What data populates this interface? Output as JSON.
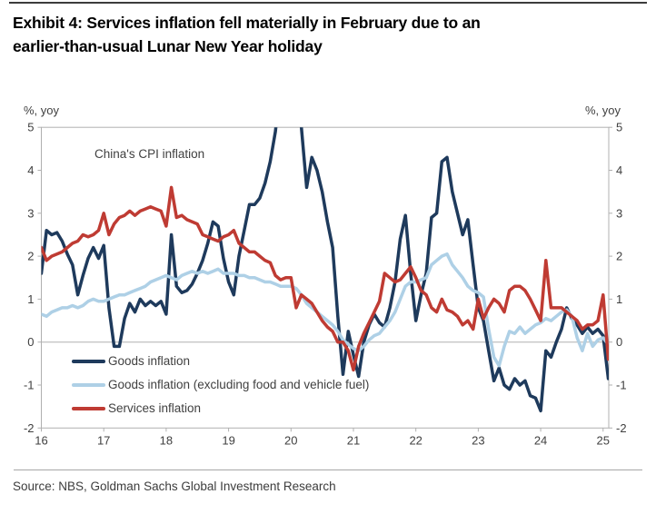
{
  "title": {
    "line1": "Exhibit 4: Services inflation fell materially in February due to an",
    "line2": "earlier-than-usual Lunar New Year holiday"
  },
  "axis": {
    "unit_left": "%, yoy",
    "unit_right": "%, yoy",
    "annotation": "China's CPI inflation"
  },
  "source": "Source: NBS, Goldman Sachs Global Investment Research",
  "colors": {
    "goods": "#1e3a5c",
    "core_goods": "#aed0e6",
    "services": "#bf3b33",
    "axis_line": "#b0b0b0",
    "tick_text": "#404040"
  },
  "legend": [
    {
      "label": "Goods inflation",
      "color": "#1e3a5c",
      "thickness": 4
    },
    {
      "label": "Goods inflation (excluding food and vehicle fuel)",
      "color": "#aed0e6",
      "thickness": 4
    },
    {
      "label": "Services inflation",
      "color": "#bf3b33",
      "thickness": 4
    }
  ],
  "chart_data": {
    "type": "line",
    "title_annotation": "China's CPI inflation",
    "x_start": "2016-01",
    "x_end": "2025-02",
    "frequency": "monthly",
    "ylim": [
      -2,
      5
    ],
    "y_ticks": [
      5,
      4,
      3,
      2,
      1,
      0,
      -1,
      -2
    ],
    "x_tick_labels": [
      "16",
      "17",
      "18",
      "19",
      "20",
      "21",
      "22",
      "23",
      "24",
      "25"
    ],
    "grid": "zero-line-only",
    "legend_position": "bottom-left-inside",
    "note": "Goods line exceeds the +5 axis limit from late 2019 to early 2020 and is clipped at the plot top.",
    "series": [
      {
        "name": "Goods inflation",
        "color": "#1e3a5c",
        "values": [
          1.6,
          2.6,
          2.5,
          2.55,
          2.35,
          2.05,
          1.8,
          1.1,
          1.55,
          1.95,
          2.2,
          1.95,
          2.25,
          0.8,
          -0.1,
          -0.1,
          0.55,
          0.9,
          0.7,
          1.0,
          0.85,
          0.95,
          0.85,
          0.95,
          0.65,
          2.5,
          1.3,
          1.15,
          1.2,
          1.35,
          1.6,
          1.9,
          2.3,
          2.8,
          2.7,
          1.95,
          1.4,
          1.1,
          2.0,
          2.6,
          3.2,
          3.2,
          3.35,
          3.7,
          4.2,
          4.9,
          6.0,
          6.3,
          6.5,
          6.5,
          5.0,
          3.6,
          4.3,
          4.0,
          3.5,
          2.8,
          2.2,
          0.6,
          -0.75,
          0.25,
          -0.3,
          -0.8,
          0.0,
          0.4,
          0.65,
          0.45,
          0.35,
          0.8,
          1.4,
          2.4,
          2.95,
          1.6,
          0.5,
          1.1,
          1.6,
          2.9,
          3.0,
          4.2,
          4.3,
          3.5,
          3.0,
          2.5,
          2.85,
          1.8,
          0.8,
          0.5,
          -0.2,
          -0.9,
          -0.6,
          -1.0,
          -1.1,
          -0.85,
          -1.0,
          -0.9,
          -1.25,
          -1.3,
          -1.6,
          -0.2,
          -0.35,
          0.0,
          0.3,
          0.8,
          0.55,
          0.4,
          0.2,
          0.35,
          0.2,
          0.3,
          0.15,
          -0.85
        ]
      },
      {
        "name": "Goods inflation (excluding food and vehicle fuel)",
        "color": "#aed0e6",
        "values": [
          0.65,
          0.6,
          0.7,
          0.75,
          0.8,
          0.8,
          0.85,
          0.8,
          0.85,
          0.95,
          1.0,
          0.95,
          0.95,
          1.0,
          1.05,
          1.1,
          1.1,
          1.15,
          1.2,
          1.25,
          1.3,
          1.4,
          1.45,
          1.5,
          1.55,
          1.5,
          1.45,
          1.55,
          1.6,
          1.65,
          1.6,
          1.65,
          1.6,
          1.65,
          1.7,
          1.6,
          1.6,
          1.6,
          1.55,
          1.55,
          1.5,
          1.5,
          1.45,
          1.4,
          1.4,
          1.35,
          1.3,
          1.3,
          1.3,
          1.25,
          1.1,
          0.9,
          0.8,
          0.7,
          0.6,
          0.5,
          0.4,
          0.25,
          0.05,
          -0.05,
          -0.15,
          -0.2,
          -0.1,
          0.05,
          0.15,
          0.2,
          0.35,
          0.5,
          0.7,
          1.0,
          1.3,
          1.4,
          1.4,
          1.45,
          1.5,
          1.8,
          1.9,
          2.0,
          2.05,
          1.8,
          1.65,
          1.5,
          1.3,
          1.2,
          1.15,
          1.05,
          0.3,
          -0.35,
          -0.55,
          -0.1,
          0.25,
          0.2,
          0.35,
          0.2,
          0.3,
          0.4,
          0.45,
          0.55,
          0.5,
          0.6,
          0.7,
          0.75,
          0.6,
          0.1,
          -0.2,
          0.2,
          -0.1,
          0.05,
          0.1,
          -0.05
        ]
      },
      {
        "name": "Services inflation",
        "color": "#bf3b33",
        "values": [
          2.2,
          1.9,
          2.0,
          2.05,
          2.1,
          2.2,
          2.3,
          2.35,
          2.5,
          2.45,
          2.5,
          2.6,
          3.0,
          2.5,
          2.75,
          2.9,
          2.95,
          3.05,
          2.95,
          3.05,
          3.1,
          3.15,
          3.1,
          3.05,
          2.7,
          3.6,
          2.9,
          2.95,
          2.85,
          2.8,
          2.75,
          2.5,
          2.45,
          2.4,
          2.35,
          2.45,
          2.5,
          2.6,
          2.3,
          2.2,
          2.1,
          2.1,
          2.0,
          1.9,
          1.85,
          1.55,
          1.45,
          1.5,
          1.5,
          0.8,
          1.1,
          1.0,
          0.9,
          0.7,
          0.5,
          0.35,
          0.25,
          0.0,
          0.0,
          -0.2,
          -0.65,
          -0.1,
          0.2,
          0.45,
          0.7,
          0.95,
          1.6,
          1.5,
          1.4,
          1.45,
          1.6,
          1.75,
          1.5,
          1.2,
          1.1,
          0.8,
          0.7,
          1.0,
          0.75,
          0.7,
          0.6,
          0.4,
          0.5,
          0.3,
          1.0,
          0.55,
          0.8,
          1.0,
          0.9,
          0.7,
          1.2,
          1.3,
          1.3,
          1.2,
          1.0,
          0.75,
          0.5,
          1.9,
          0.8,
          0.8,
          0.8,
          0.7,
          0.6,
          0.5,
          0.3,
          0.4,
          0.4,
          0.5,
          1.1,
          -0.4
        ]
      }
    ]
  }
}
